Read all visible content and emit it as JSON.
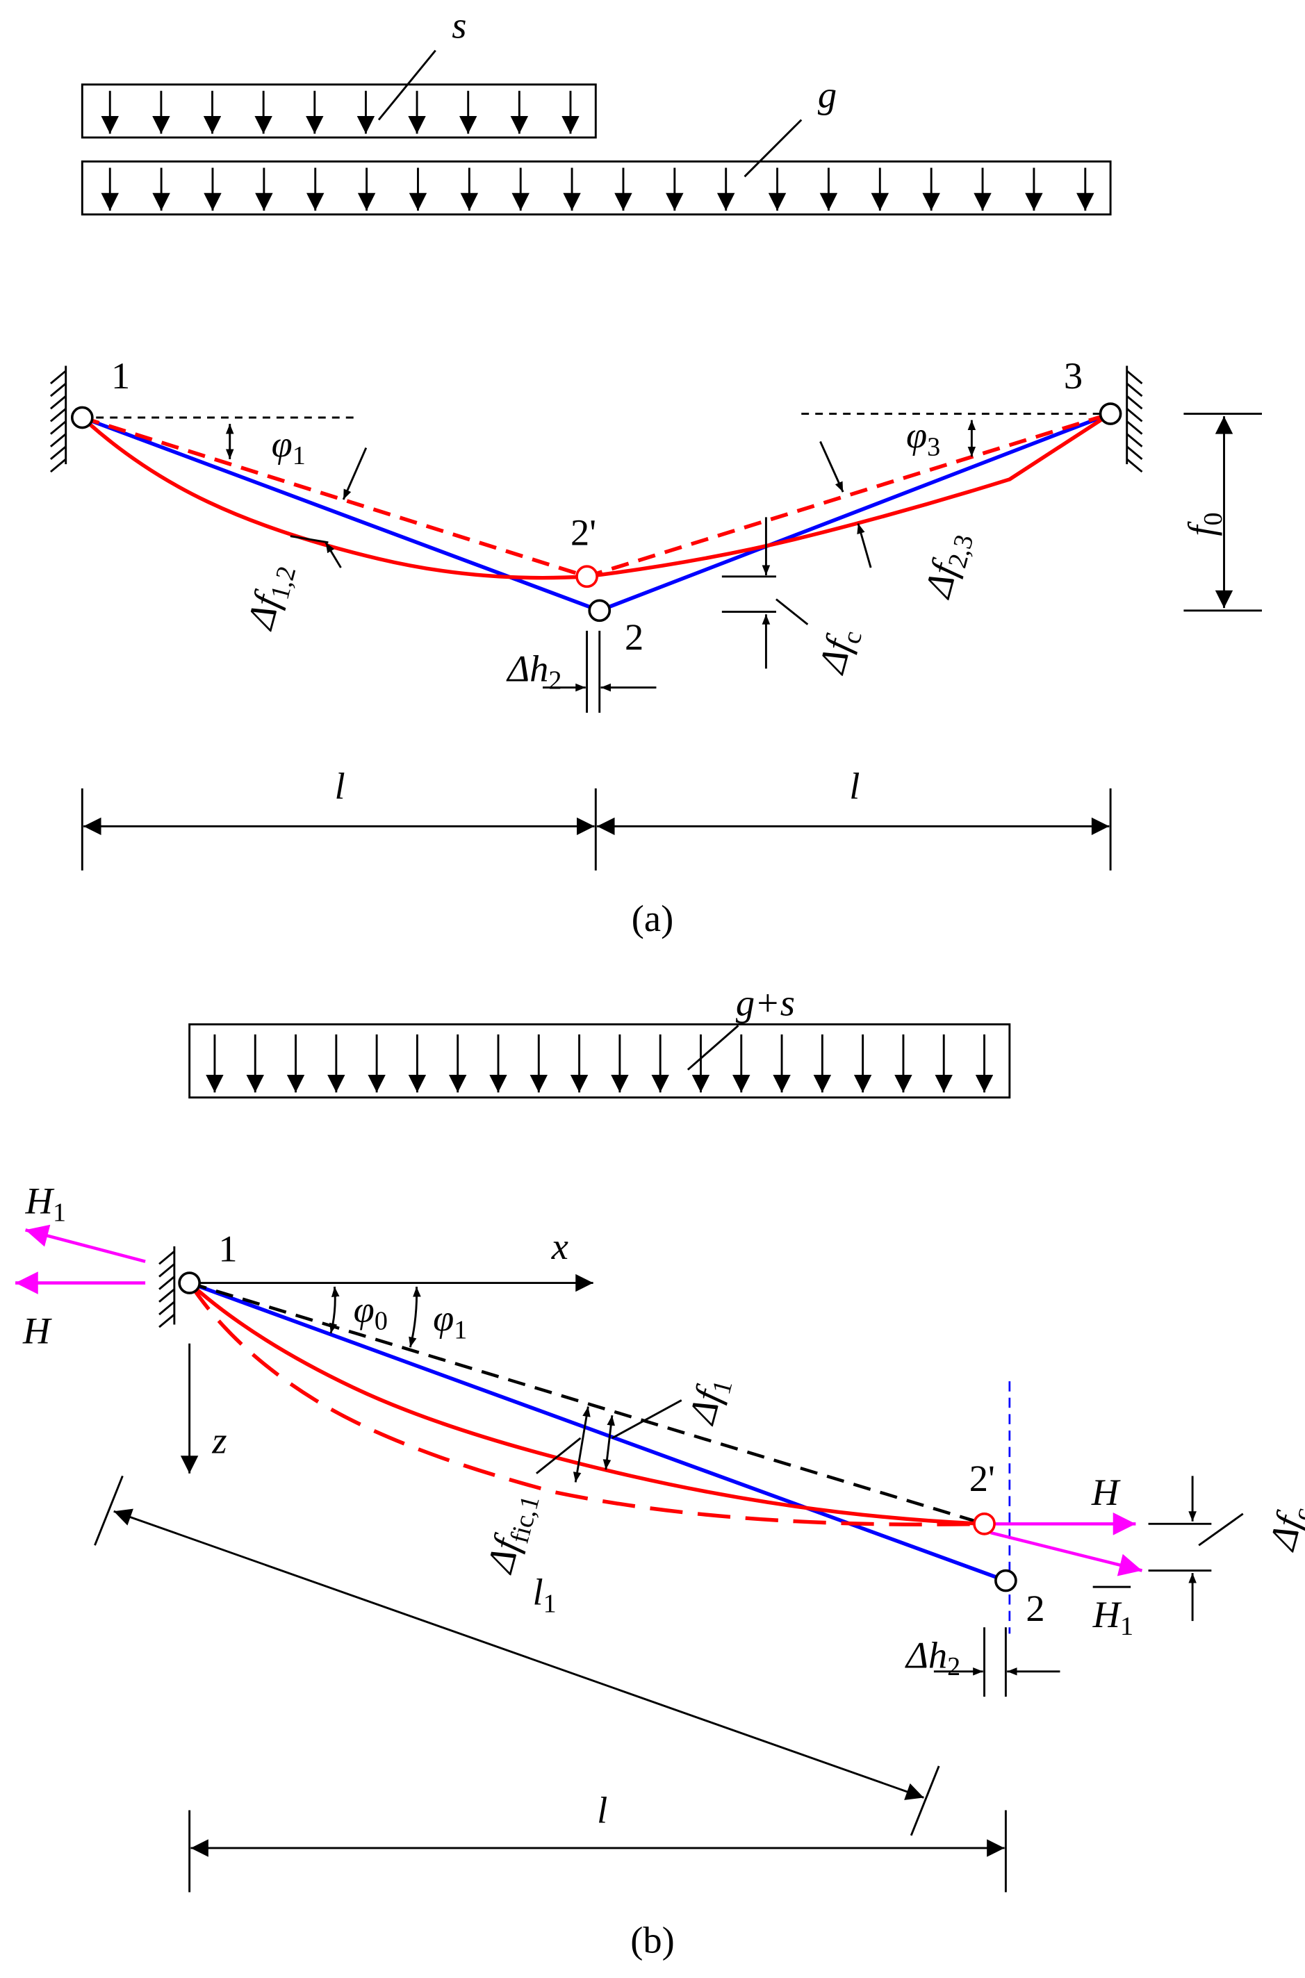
{
  "panel_a": {
    "caption": "(a)",
    "load_s": "s",
    "load_g": "g",
    "node_1": "1",
    "node_2": "2",
    "node_2p": "2'",
    "node_3": "3",
    "phi_1": {
      "main": "φ",
      "sub": "1"
    },
    "phi_3": {
      "main": "φ",
      "sub": "3"
    },
    "df_12": {
      "main": "Δf",
      "sub": "1,2"
    },
    "df_23": {
      "main": "Δf",
      "sub": "2,3"
    },
    "df_c": {
      "main": "Δf",
      "sub": "c"
    },
    "dh_2": {
      "main": "Δh",
      "sub": "2"
    },
    "f_0": {
      "main": "f",
      "sub": "0"
    },
    "span_left": "l",
    "span_right": "l"
  },
  "panel_b": {
    "caption": "(b)",
    "load_gs": "g+s",
    "node_1": "1",
    "node_2": "2",
    "node_2p": "2'",
    "axis_x": "x",
    "axis_z": "z",
    "force_H1_left": {
      "main": "H",
      "sub": "1"
    },
    "force_H_left": "H",
    "force_H_right": "H",
    "force_H1_right": {
      "main": "H",
      "sub": "1"
    },
    "phi_0": {
      "main": "φ",
      "sub": "0"
    },
    "phi_1": {
      "main": "φ",
      "sub": "1"
    },
    "df_1": {
      "main": "Δf",
      "sub": "1"
    },
    "df_fic1": {
      "main": "Δf",
      "sub": "fic,1"
    },
    "df_c": {
      "main": "Δf",
      "sub": "c"
    },
    "dh_2": {
      "main": "Δh",
      "sub": "2"
    },
    "span_l1": {
      "main": "l",
      "sub": "1"
    },
    "span_l": "l"
  }
}
